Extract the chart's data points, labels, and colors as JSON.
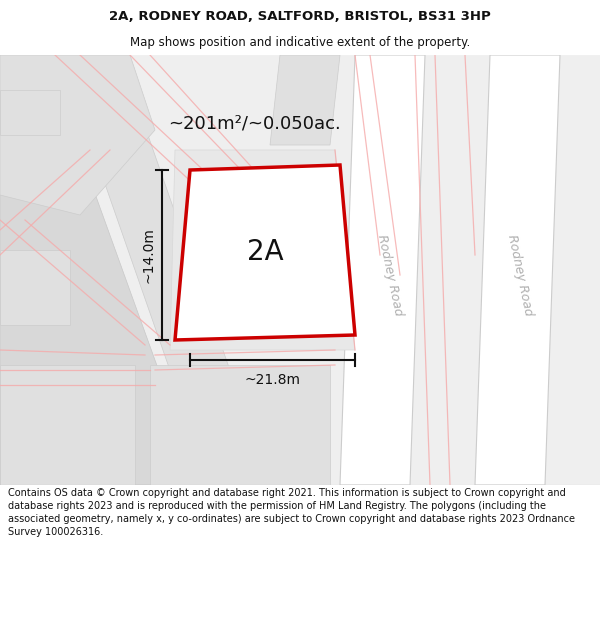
{
  "title_line1": "2A, RODNEY ROAD, SALTFORD, BRISTOL, BS31 3HP",
  "title_line2": "Map shows position and indicative extent of the property.",
  "area_label": "~201m²/~0.050ac.",
  "property_label": "2A",
  "width_label": "~21.8m",
  "height_label": "~14.0m",
  "footer_text": "Contains OS data © Crown copyright and database right 2021. This information is subject to Crown copyright and database rights 2023 and is reproduced with the permission of HM Land Registry. The polygons (including the associated geometry, namely x, y co-ordinates) are subject to Crown copyright and database rights 2023 Ordnance Survey 100026316.",
  "bg_color": "#efefef",
  "road_white": "#ffffff",
  "block_gray": "#e0e0e0",
  "block_gray2": "#d8d8d8",
  "property_border": "#cc0000",
  "property_fill": "#ffffff",
  "dim_color": "#111111",
  "road_label_color": "#b0b0b0",
  "title_color": "#111111",
  "pink": "#f5aaaa",
  "road_label": "Rodney Road"
}
